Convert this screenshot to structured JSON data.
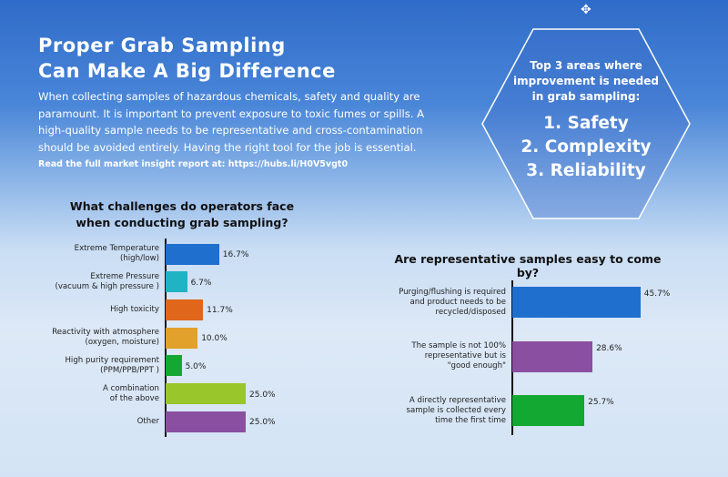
{
  "header": {
    "title_line1": "Proper Grab Sampling",
    "title_line2": "Can Make A Big Difference",
    "intro": "When collecting samples of hazardous chemicals, safety and quality are paramount. It is important to prevent exposure to toxic fumes or spills. A high-quality sample needs to be representative and cross-contamination should be avoided entirely. Having the right tool for the job is essential.",
    "link": "Read the full market insight report at: https://hubs.li/H0V5vgt0"
  },
  "callout": {
    "heading_line1": "Top 3 areas where",
    "heading_line2": "improvement is needed",
    "heading_line3": "in grab sampling:",
    "items": [
      "1. Safety",
      "2. Complexity",
      "3. Reliability"
    ]
  },
  "chart_data": [
    {
      "type": "bar",
      "orientation": "horizontal",
      "title_line1": "What challenges do operators face",
      "title_line2": "when conducting grab sampling?",
      "categories": [
        "Extreme Temperature\n(high/low)",
        "Extreme Pressure\n(vacuum & high pressure )",
        "High toxicity",
        "Reactivity with atmosphere\n(oxygen, moisture)",
        "High purity requirement\n(PPM/PPB/PPT )",
        "A combination\nof the above",
        "Other"
      ],
      "values": [
        16.7,
        6.7,
        11.7,
        10.0,
        5.0,
        25.0,
        25.0
      ],
      "labels": [
        "16.7%",
        "6.7%",
        "11.7%",
        "10.0%",
        "5.0%",
        "25.0%",
        "25.0%"
      ],
      "colors": [
        "#1f6fcf",
        "#1fb3c4",
        "#e0661c",
        "#e2a12a",
        "#13a832",
        "#99c62a",
        "#8a4fa0"
      ],
      "grid": false
    },
    {
      "type": "bar",
      "orientation": "horizontal",
      "title": "Are representative samples easy to come by?",
      "categories": [
        "Purging/flushing is required\nand product needs to be\nrecycled/disposed",
        "The sample is not 100%\nrepresentative but is\n\"good enough\"",
        "A directly representative\nsample is collected every\ntime the first time"
      ],
      "values": [
        45.7,
        28.6,
        25.7
      ],
      "labels": [
        "45.7%",
        "28.6%",
        "25.7%"
      ],
      "colors": [
        "#1f6fcf",
        "#8a4fa0",
        "#13a832"
      ],
      "grid": false
    }
  ]
}
